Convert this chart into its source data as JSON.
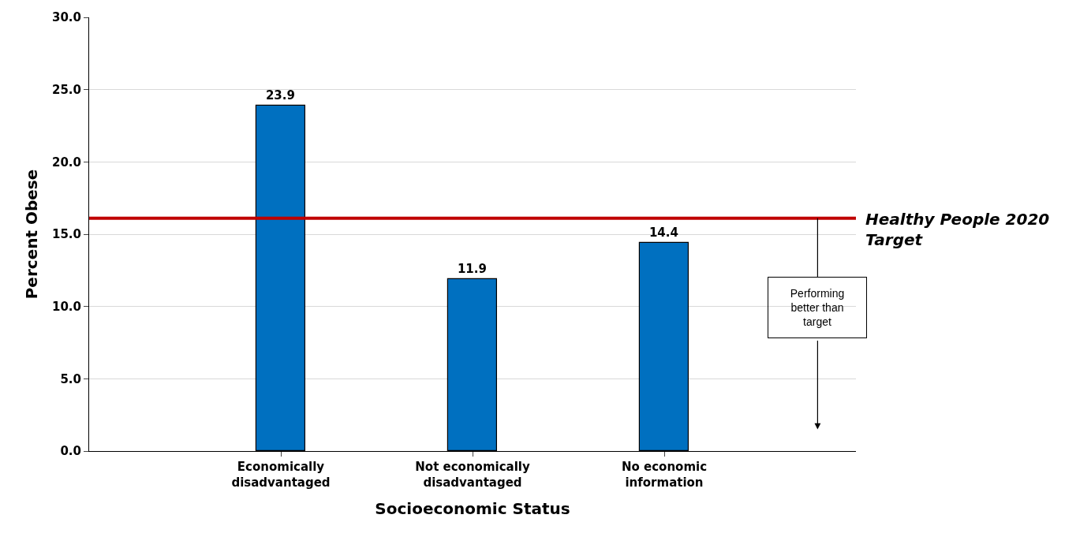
{
  "chart_data": {
    "type": "bar",
    "xlabel": "Socioeconomic Status",
    "ylabel": "Percent Obese",
    "categories": [
      null,
      "Economically disadvantaged",
      "Not economically disadvantaged",
      "No economic information",
      null
    ],
    "values": [
      null,
      23.9,
      11.9,
      14.4,
      null
    ],
    "color": "#0070c0",
    "value_labels": [
      null,
      "23.9",
      "11.9",
      "14.4",
      null
    ],
    "ylim": [
      0,
      30
    ],
    "yticks": [
      {
        "value": 0,
        "label": "0.0"
      },
      {
        "value": 5,
        "label": "5.0"
      },
      {
        "value": 10,
        "label": "10.0"
      },
      {
        "value": 15,
        "label": "15.0"
      },
      {
        "value": 20,
        "label": "20.0"
      },
      {
        "value": 25,
        "label": "25.0"
      },
      {
        "value": 30,
        "label": "30.0"
      }
    ],
    "grid": "y",
    "ref_lines": [
      {
        "axis": "y",
        "value": 16.1,
        "label": "Healthy People 2020 Target",
        "color": "#c00000"
      }
    ],
    "annotations": [
      {
        "text": "Performing better than target",
        "y": 16.1
      }
    ]
  }
}
